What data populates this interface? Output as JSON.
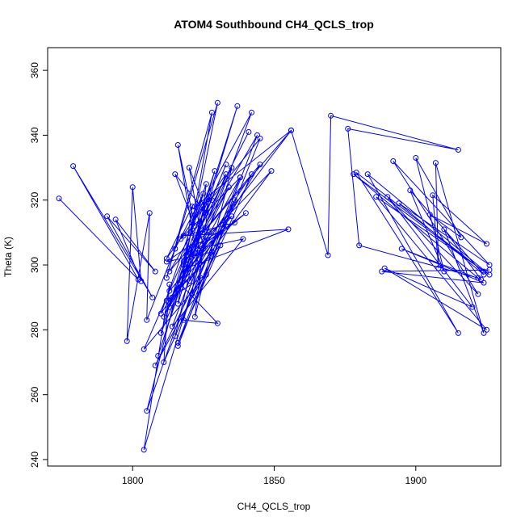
{
  "chart_data": {
    "type": "line",
    "title": "ATOM4 Southbound CH4_QCLS_trop",
    "xlabel": "CH4_QCLS_trop",
    "ylabel": "Theta (K)",
    "xlim": [
      1770,
      1930
    ],
    "ylim": [
      238,
      367
    ],
    "x_ticks": [
      1800,
      1850,
      1900
    ],
    "x_tick_labels": [
      "1800",
      "1850",
      "1900"
    ],
    "y_ticks": [
      240,
      260,
      280,
      300,
      320,
      340,
      360
    ],
    "y_tick_labels": [
      "240",
      "260",
      "280",
      "300",
      "320",
      "340",
      "360"
    ],
    "grid": false,
    "legend": "none",
    "series_color": "#0000ff",
    "series": [
      {
        "marker": "open-circle",
        "points": [
          [
            1774,
            320.5
          ],
          [
            1802,
            295.5
          ],
          [
            1779,
            330.5
          ],
          [
            1807,
            290
          ],
          [
            1791,
            315
          ],
          [
            1808,
            298
          ],
          [
            1794,
            314
          ],
          [
            1803,
            295
          ],
          [
            1800,
            324
          ],
          [
            1798,
            276.5
          ],
          [
            1806,
            316
          ],
          [
            1805,
            283
          ],
          [
            1815,
            305
          ],
          [
            1825,
            322
          ],
          [
            1810,
            279
          ],
          [
            1833,
            328
          ],
          [
            1812,
            302
          ],
          [
            1821,
            318
          ],
          [
            1817,
            293
          ],
          [
            1829,
            329
          ],
          [
            1813,
            287
          ],
          [
            1838,
            327
          ],
          [
            1815,
            278
          ],
          [
            1824,
            312
          ],
          [
            1809,
            272
          ],
          [
            1837,
            349
          ],
          [
            1816,
            288
          ],
          [
            1828,
            347
          ],
          [
            1812,
            296
          ],
          [
            1830,
            350
          ],
          [
            1819,
            303
          ],
          [
            1841,
            341
          ],
          [
            1822,
            308
          ],
          [
            1833,
            331
          ],
          [
            1811,
            284
          ],
          [
            1834,
            324
          ],
          [
            1818,
            300
          ],
          [
            1840,
            316
          ],
          [
            1823,
            305
          ],
          [
            1839,
            308
          ],
          [
            1814,
            281
          ],
          [
            1842,
            347
          ],
          [
            1821,
            313
          ],
          [
            1845,
            339
          ],
          [
            1816,
            275
          ],
          [
            1836,
            320
          ],
          [
            1808,
            269
          ],
          [
            1831,
            306
          ],
          [
            1812,
            289
          ],
          [
            1826,
            297
          ],
          [
            1804,
            274
          ],
          [
            1819,
            304
          ],
          [
            1805,
            255
          ],
          [
            1827,
            310
          ],
          [
            1804,
            243
          ],
          [
            1813,
            294
          ],
          [
            1811,
            270
          ],
          [
            1824,
            296
          ],
          [
            1816,
            337
          ],
          [
            1822,
            312
          ],
          [
            1815,
            328
          ],
          [
            1826,
            316
          ],
          [
            1820,
            330
          ],
          [
            1825,
            305
          ],
          [
            1818,
            283
          ],
          [
            1830,
            282
          ],
          [
            1817,
            294
          ],
          [
            1833,
            312
          ],
          [
            1813,
            292
          ],
          [
            1835,
            315
          ],
          [
            1812,
            301
          ],
          [
            1828,
            304
          ],
          [
            1814,
            290
          ],
          [
            1835,
            330
          ],
          [
            1822,
            284
          ],
          [
            1827,
            321
          ],
          [
            1817,
            308
          ],
          [
            1838,
            327
          ],
          [
            1821,
            291
          ],
          [
            1826,
            325
          ],
          [
            1810,
            285
          ],
          [
            1842,
            328
          ],
          [
            1816,
            276
          ],
          [
            1844,
            340
          ],
          [
            1818,
            301
          ],
          [
            1849,
            329
          ],
          [
            1820,
            295
          ],
          [
            1845,
            331
          ],
          [
            1813,
            298
          ],
          [
            1828,
            320
          ],
          [
            1822,
            318
          ],
          [
            1856,
            341.5
          ],
          [
            1819,
            299
          ],
          [
            1855,
            311
          ],
          [
            1818,
            309
          ],
          [
            1836,
            313
          ],
          [
            1820,
            305
          ],
          [
            1856,
            341.5
          ],
          [
            1869,
            303
          ],
          [
            1870,
            346
          ],
          [
            1915,
            335.5
          ],
          [
            1876,
            342
          ],
          [
            1880,
            306
          ],
          [
            1922,
            296
          ],
          [
            1878,
            328
          ],
          [
            1924,
            298
          ],
          [
            1879,
            328.5
          ],
          [
            1915,
            279
          ],
          [
            1883,
            328
          ],
          [
            1926,
            297
          ],
          [
            1886,
            321
          ],
          [
            1925,
            280
          ],
          [
            1889,
            299
          ],
          [
            1920,
            287
          ],
          [
            1890,
            321
          ],
          [
            1922,
            291
          ],
          [
            1892,
            332
          ],
          [
            1926,
            300
          ],
          [
            1894,
            319
          ],
          [
            1924,
            297
          ],
          [
            1898,
            323
          ],
          [
            1910,
            298
          ],
          [
            1900,
            333
          ],
          [
            1916,
            308.5
          ],
          [
            1905,
            315.5
          ],
          [
            1925,
            306.5
          ],
          [
            1906,
            321.5
          ],
          [
            1908,
            299
          ],
          [
            1907,
            331.5
          ],
          [
            1924,
            279
          ],
          [
            1910,
            311
          ],
          [
            1923,
            295.5
          ],
          [
            1895,
            305
          ],
          [
            1924,
            294.5
          ],
          [
            1888,
            298
          ],
          [
            1926,
            298.5
          ]
        ]
      }
    ]
  }
}
